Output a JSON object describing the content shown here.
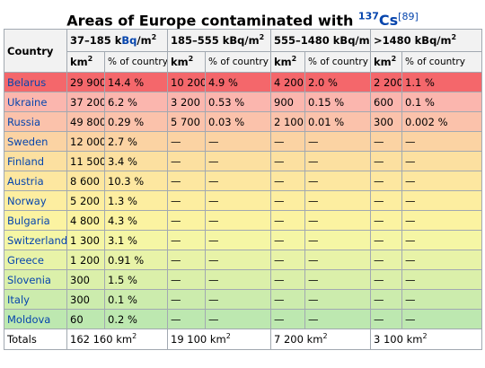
{
  "caption": {
    "prefix": "Areas of Europe contaminated with ",
    "isotope_mass": "137",
    "isotope_symbol": "Cs",
    "ref": "[89]"
  },
  "header": {
    "country": "Country",
    "band1_prefix": "37–185 k",
    "band1_unit": "Bq",
    "band1_suffix": "/m",
    "band1_exp": "2",
    "band2_base": "185–555 kBq/m",
    "band2_exp": "2",
    "band3_base": "555–1480 kBq/m",
    "band3_exp": "2",
    "band4_base": ">1480 kBq/m",
    "band4_exp": "2",
    "km_base": "km",
    "km_exp": "2",
    "pct": "% of country"
  },
  "rows": [
    {
      "country": "Belarus",
      "bg": "#f4676b",
      "cells": [
        "29 900",
        "14.4 %",
        "10 200",
        "4.9 %",
        "4 200",
        "2.0 %",
        "2 200",
        "1.1 %"
      ]
    },
    {
      "country": "Ukraine",
      "bg": "#fbb6ae",
      "cells": [
        "37 200",
        "6.2 %",
        "3 200",
        "0.53 %",
        "900",
        "0.15 %",
        "600",
        "0.1 %"
      ]
    },
    {
      "country": "Russia",
      "bg": "#fbc2ab",
      "cells": [
        "49 800",
        "0.29 %",
        "5 700",
        "0.03 %",
        "2 100",
        "0.01 %",
        "300",
        "0.002 %"
      ]
    },
    {
      "country": "Sweden",
      "bg": "#fbd3a3",
      "cells": [
        "12 000",
        "2.7 %",
        "—",
        "—",
        "—",
        "—",
        "—",
        "—"
      ]
    },
    {
      "country": "Finland",
      "bg": "#fce0a0",
      "cells": [
        "11 500",
        "3.4 %",
        "—",
        "—",
        "—",
        "—",
        "—",
        "—"
      ]
    },
    {
      "country": "Austria",
      "bg": "#fde7a0",
      "cells": [
        "8 600",
        "10.3 %",
        "—",
        "—",
        "—",
        "—",
        "—",
        "—"
      ]
    },
    {
      "country": "Norway",
      "bg": "#fdeea0",
      "cells": [
        "5 200",
        "1.3 %",
        "—",
        "—",
        "—",
        "—",
        "—",
        "—"
      ]
    },
    {
      "country": "Bulgaria",
      "bg": "#fbf3a1",
      "cells": [
        "4 800",
        "4.3 %",
        "—",
        "—",
        "—",
        "—",
        "—",
        "—"
      ]
    },
    {
      "country": "Switzerland",
      "bg": "#f5f6a5",
      "cells": [
        "1 300",
        "3.1 %",
        "—",
        "—",
        "—",
        "—",
        "—",
        "—"
      ]
    },
    {
      "country": "Greece",
      "bg": "#e8f3a8",
      "cells": [
        "1 200",
        "0.91 %",
        "—",
        "—",
        "—",
        "—",
        "—",
        "—"
      ]
    },
    {
      "country": "Slovenia",
      "bg": "#dbf0aa",
      "cells": [
        "300",
        "1.5 %",
        "—",
        "—",
        "—",
        "—",
        "—",
        "—"
      ]
    },
    {
      "country": "Italy",
      "bg": "#ccecad",
      "cells": [
        "300",
        "0.1 %",
        "—",
        "—",
        "—",
        "—",
        "—",
        "—"
      ]
    },
    {
      "country": "Moldova",
      "bg": "#bde8b0",
      "cells": [
        "60",
        "0.2 %",
        "—",
        "—",
        "—",
        "—",
        "—",
        "—"
      ]
    }
  ],
  "totals": {
    "label": "Totals",
    "band1": "162 160 km",
    "band2": "19 100 km",
    "band3": "7 200 km",
    "band4": "3 100 km",
    "exp": "2"
  }
}
